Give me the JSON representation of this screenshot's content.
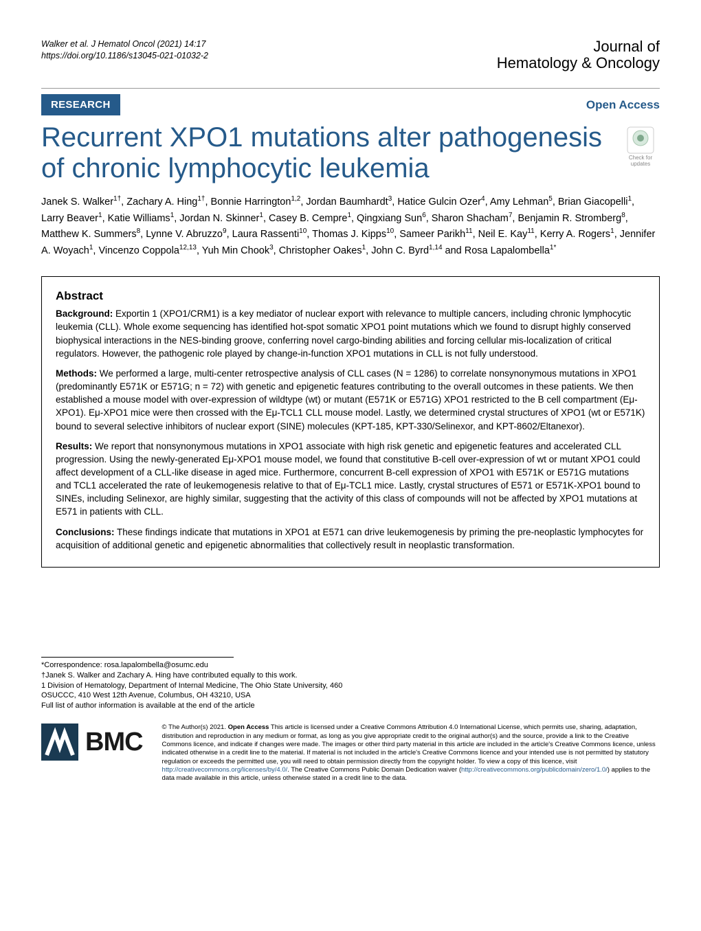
{
  "header": {
    "citation_line1": "Walker et al. J Hematol Oncol     (2021) 14:17",
    "citation_line2": "https://doi.org/10.1186/s13045-021-01032-2",
    "journal_line1": "Journal of",
    "journal_line2": "Hematology & Oncology"
  },
  "banner": {
    "research": "RESEARCH",
    "open_access": "Open Access"
  },
  "title": "Recurrent XPO1 mutations alter pathogenesis of chronic lymphocytic leukemia",
  "check_updates": "Check for updates",
  "authors_html": "Janek S. Walker<sup>1†</sup>, Zachary A. Hing<sup>1†</sup>, Bonnie Harrington<sup>1,2</sup>, Jordan Baumhardt<sup>3</sup>, Hatice Gulcin Ozer<sup>4</sup>, Amy Lehman<sup>5</sup>, Brian Giacopelli<sup>1</sup>, Larry Beaver<sup>1</sup>, Katie Williams<sup>1</sup>, Jordan N. Skinner<sup>1</sup>, Casey B. Cempre<sup>1</sup>, Qingxiang Sun<sup>6</sup>, Sharon Shacham<sup>7</sup>, Benjamin R. Stromberg<sup>8</sup>, Matthew K. Summers<sup>8</sup>, Lynne V. Abruzzo<sup>9</sup>, Laura Rassenti<sup>10</sup>, Thomas J. Kipps<sup>10</sup>, Sameer Parikh<sup>11</sup>, Neil E. Kay<sup>11</sup>, Kerry A. Rogers<sup>1</sup>, Jennifer A. Woyach<sup>1</sup>, Vincenzo Coppola<sup>12,13</sup>, Yuh Min Chook<sup>3</sup>, Christopher Oakes<sup>1</sup>, John C. Byrd<sup>1,14</sup> and Rosa Lapalombella<sup>1*</sup>",
  "abstract": {
    "title": "Abstract",
    "background_label": "Background:",
    "background": " Exportin 1 (XPO1/CRM1) is a key mediator of nuclear export with relevance to multiple cancers, including chronic lymphocytic leukemia (CLL). Whole exome sequencing has identified hot-spot somatic XPO1 point mutations which we found to disrupt highly conserved biophysical interactions in the NES-binding groove, conferring novel cargo-binding abilities and forcing cellular mis-localization of critical regulators. However, the pathogenic role played by change-in-function XPO1 mutations in CLL is not fully understood.",
    "methods_label": "Methods:",
    "methods": " We performed a large, multi-center retrospective analysis of CLL cases (N = 1286) to correlate nonsynonymous mutations in XPO1 (predominantly E571K or E571G; n = 72) with genetic and epigenetic features contributing to the overall outcomes in these patients. We then established a mouse model with over-expression of wildtype (wt) or mutant (E571K or E571G) XPO1 restricted to the B cell compartment (Eμ-XPO1). Eμ-XPO1 mice were then crossed with the Eμ-TCL1 CLL mouse model. Lastly, we determined crystal structures of XPO1 (wt or E571K) bound to several selective inhibitors of nuclear export (SINE) molecules (KPT-185, KPT-330/Selinexor, and KPT-8602/Eltanexor).",
    "results_label": "Results:",
    "results": " We report that nonsynonymous mutations in XPO1 associate with high risk genetic and epigenetic features and accelerated CLL progression. Using the newly-generated Eμ-XPO1 mouse model, we found that constitutive B-cell over-expression of wt or mutant XPO1 could affect development of a CLL-like disease in aged mice. Furthermore, concurrent B-cell expression of XPO1 with E571K or E571G mutations and TCL1 accelerated the rate of leukemogenesis relative to that of Eμ-TCL1 mice. Lastly, crystal structures of E571 or E571K-XPO1 bound to SINEs, including Selinexor, are highly similar, suggesting that the activity of this class of compounds will not be affected by XPO1 mutations at E571 in patients with CLL.",
    "conclusions_label": "Conclusions:",
    "conclusions": " These findings indicate that mutations in XPO1 at E571 can drive leukemogenesis by priming the pre-neoplastic lymphocytes for acquisition of additional genetic and epigenetic abnormalities that collectively result in neoplastic transformation."
  },
  "footnotes": {
    "correspondence": "*Correspondence: rosa.lapalombella@osumc.edu",
    "equal": "†Janek S. Walker and Zachary A. Hing have contributed equally to this work.",
    "affiliation": "1 Division of Hematology, Department of Internal Medicine, The Ohio State University, 460 OSUCCC, 410 West 12th Avenue, Columbus, OH 43210, USA",
    "full_list": "Full list of author information is available at the end of the article"
  },
  "bmc": "BMC",
  "license": {
    "prefix": "© The Author(s) 2021. ",
    "open_access_bold": "Open Access",
    "body": " This article is licensed under a Creative Commons Attribution 4.0 International License, which permits use, sharing, adaptation, distribution and reproduction in any medium or format, as long as you give appropriate credit to the original author(s) and the source, provide a link to the Creative Commons licence, and indicate if changes were made. The images or other third party material in this article are included in the article's Creative Commons licence, unless indicated otherwise in a credit line to the material. If material is not included in the article's Creative Commons licence and your intended use is not permitted by statutory regulation or exceeds the permitted use, you will need to obtain permission directly from the copyright holder. To view a copy of this licence, visit ",
    "link1": "http://creativecommons.org/licenses/by/4.0/",
    "body2": ". The Creative Commons Public Domain Dedication waiver (",
    "link2": "http://creativecommons.org/publicdomain/zero/1.0/",
    "body3": ") applies to the data made available in this article, unless otherwise stated in a credit line to the data."
  },
  "colors": {
    "brand_blue": "#255a8a",
    "text": "#000000",
    "bg": "#ffffff"
  }
}
